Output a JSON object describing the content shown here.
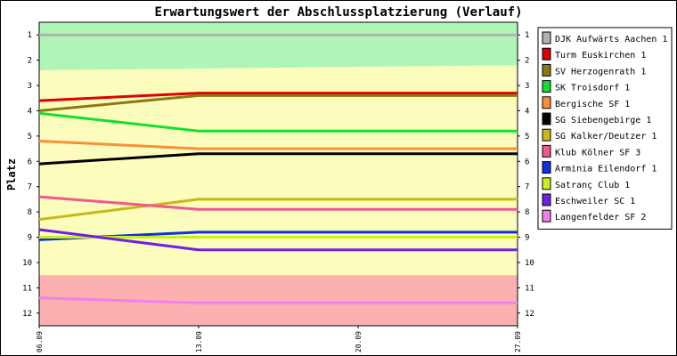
{
  "chart_data": {
    "type": "line",
    "title": "Erwartungswert der Abschlussplatzierung (Verlauf)",
    "ylabel": "Platz",
    "xlabel": "",
    "x": [
      "06.09",
      "13.09",
      "20.09",
      "27.09"
    ],
    "ylim": [
      0.5,
      12.5
    ],
    "y_inverted": true,
    "y_ticks": [
      "1",
      "2",
      "3",
      "4",
      "5",
      "6",
      "7",
      "8",
      "9",
      "10",
      "11",
      "12"
    ],
    "grid": false,
    "legend_position": "right",
    "zones": [
      {
        "color": "#b0f5b8",
        "from_left": 0.5,
        "to_left": 2.4,
        "from_right": 0.5,
        "to_right": 2.2
      },
      {
        "color": "#fcfcbc",
        "from_left": 2.4,
        "to_left": 10.5,
        "from_right": 2.2,
        "to_right": 10.5
      },
      {
        "color": "#fcb0b0",
        "from_left": 10.5,
        "to_left": 12.5,
        "from_right": 10.5,
        "to_right": 12.5
      }
    ],
    "series": [
      {
        "name": "DJK Aufwärts Aachen 1",
        "color": "#b0b0b0",
        "values": [
          1.0,
          1.0,
          1.0,
          1.0
        ]
      },
      {
        "name": "Turm Euskirchen 1",
        "color": "#e00000",
        "values": [
          3.6,
          3.3,
          3.3,
          3.3
        ]
      },
      {
        "name": "SV Herzogenrath 1",
        "color": "#8a7a10",
        "values": [
          4.0,
          3.4,
          3.4,
          3.4
        ]
      },
      {
        "name": "SK Troisdorf 1",
        "color": "#10e030",
        "values": [
          4.1,
          4.8,
          4.8,
          4.8
        ]
      },
      {
        "name": "Bergische SF 1",
        "color": "#f8903a",
        "values": [
          5.2,
          5.5,
          5.5,
          5.5
        ]
      },
      {
        "name": "SG Siebengebirge 1",
        "color": "#000000",
        "values": [
          6.1,
          5.7,
          5.7,
          5.7
        ]
      },
      {
        "name": "SG Kalker/Deutzer 1",
        "color": "#c8b818",
        "values": [
          8.3,
          7.5,
          7.5,
          7.5
        ]
      },
      {
        "name": "Klub Kölner SF 3",
        "color": "#f05890",
        "values": [
          7.4,
          7.9,
          7.9,
          7.9
        ]
      },
      {
        "name": "Arminia Eilendorf 1",
        "color": "#1030e0",
        "values": [
          9.1,
          8.8,
          8.8,
          8.8
        ]
      },
      {
        "name": "Satranç Club 1",
        "color": "#c8f020",
        "values": [
          9.0,
          9.0,
          9.0,
          9.0
        ]
      },
      {
        "name": "Eschweiler SC 1",
        "color": "#7020e0",
        "values": [
          8.7,
          9.5,
          9.5,
          9.5
        ]
      },
      {
        "name": "Langenfelder SF 2",
        "color": "#f080f0",
        "values": [
          11.4,
          11.6,
          11.6,
          11.6
        ]
      }
    ]
  }
}
